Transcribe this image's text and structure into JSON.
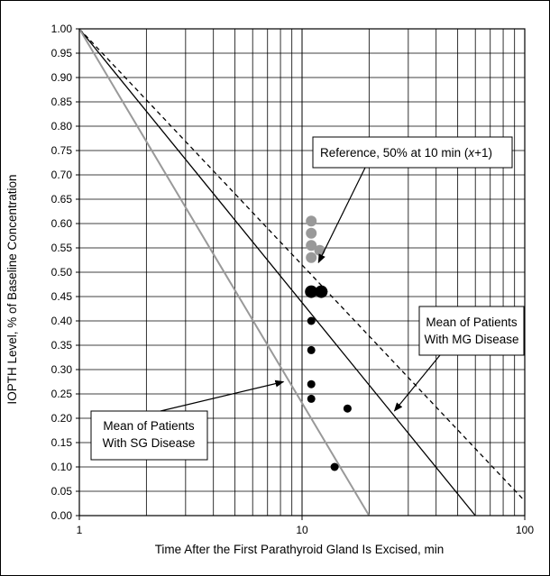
{
  "chart_data": {
    "type": "scatter",
    "title": "",
    "xlabel": "Time After the First Parathyroid Gland Is Excised, min",
    "ylabel": "IOPTH Level, % of Baseline Concentration",
    "x_scale": "log",
    "xlim": [
      1,
      100
    ],
    "ylim": [
      0,
      1.0
    ],
    "x_tick_labels": [
      "1",
      "10",
      "100"
    ],
    "y_tick_labels": [
      "0.00",
      "0.05",
      "0.10",
      "0.15",
      "0.20",
      "0.25",
      "0.30",
      "0.35",
      "0.40",
      "0.45",
      "0.50",
      "0.55",
      "0.60",
      "0.65",
      "0.70",
      "0.75",
      "0.80",
      "0.85",
      "0.90",
      "0.95",
      "1.00"
    ],
    "grid": true,
    "lines": [
      {
        "style": "dashed",
        "color": "#000000",
        "points": [
          [
            1,
            1.0
          ],
          [
            100,
            0.03
          ]
        ]
      },
      {
        "style": "solid",
        "color": "#000000",
        "points": [
          [
            1,
            1.0
          ],
          [
            60,
            0.0
          ]
        ]
      },
      {
        "style": "solid",
        "color": "#999999",
        "points": [
          [
            1,
            1.0
          ],
          [
            20,
            0.0
          ]
        ]
      }
    ],
    "series": [
      {
        "color": "#999999",
        "size": "medium",
        "points": [
          [
            11,
            0.605
          ],
          [
            11,
            0.58
          ],
          [
            11,
            0.555
          ],
          [
            12,
            0.545
          ],
          [
            11,
            0.53
          ]
        ]
      },
      {
        "color": "#000000",
        "size": "large",
        "points": [
          [
            11,
            0.46
          ],
          [
            12.2,
            0.46
          ]
        ]
      },
      {
        "color": "#000000",
        "size": "small",
        "points": [
          [
            11,
            0.4
          ],
          [
            11,
            0.34
          ],
          [
            11,
            0.27
          ],
          [
            11,
            0.24
          ],
          [
            16,
            0.22
          ],
          [
            14,
            0.1
          ]
        ]
      }
    ],
    "annotations": [
      {
        "line1": "Reference, 50% at 10 min (",
        "italic": "x",
        "line1_end": "+1)"
      },
      {
        "line1": "Mean of Patients",
        "line2": "With MG Disease"
      },
      {
        "line1": "Mean of Patients",
        "line2": "With SG Disease"
      }
    ]
  }
}
